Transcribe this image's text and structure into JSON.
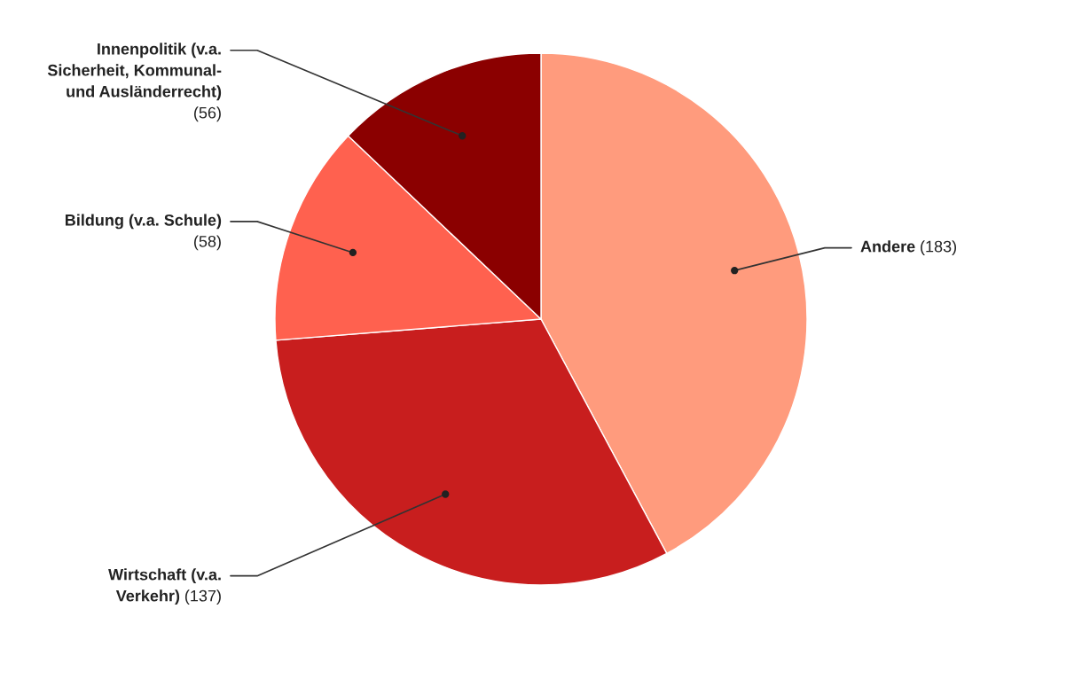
{
  "chart_data": {
    "type": "pie",
    "categories": [
      "Andere",
      "Wirtschaft (v.a. Verkehr)",
      "Bildung (v.a. Schule)",
      "Innenpolitik (v.a. Sicherheit, Kommunal- und Ausländerrecht)"
    ],
    "values": [
      183,
      137,
      58,
      56
    ],
    "colors": [
      "#ff9b7d",
      "#c81e1e",
      "#ff614f",
      "#8b0000"
    ],
    "value_labels": [
      "(183)",
      "(137)",
      "(58)",
      "(56)"
    ]
  }
}
